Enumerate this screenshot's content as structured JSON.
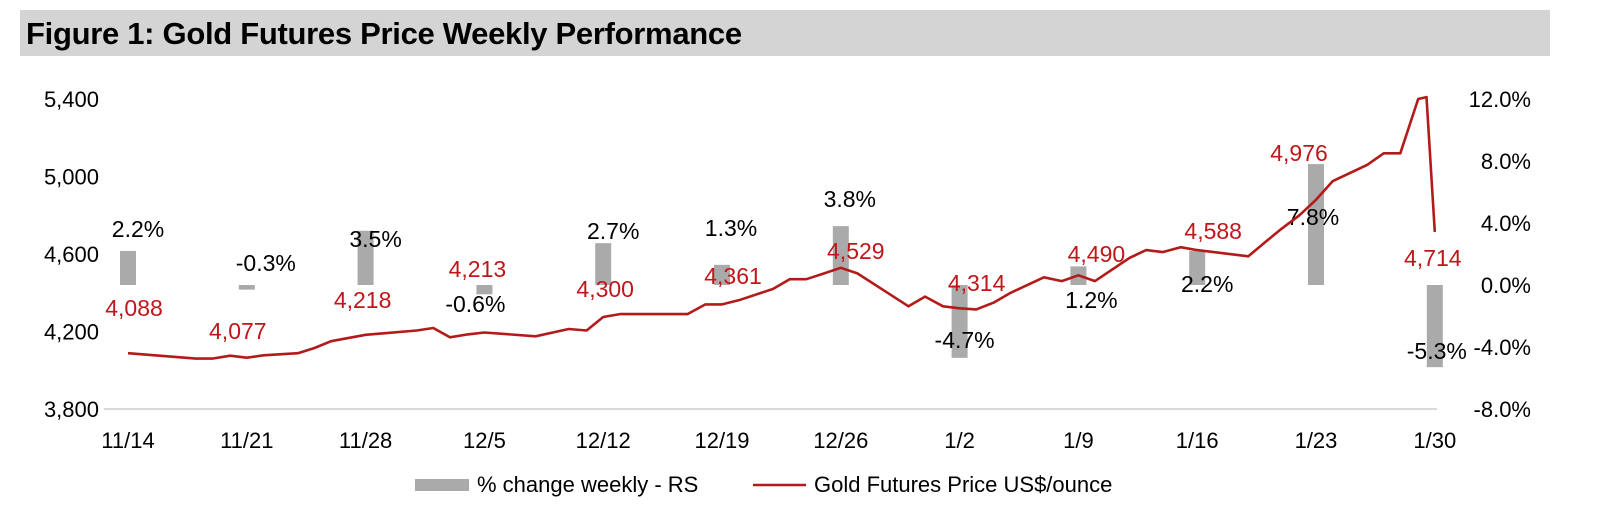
{
  "title": "Figure 1: Gold Futures Price Weekly Performance",
  "colors": {
    "bar": "#aaaaaa",
    "line": "#b31b1b",
    "price_label": "#c0161a",
    "text": "#000000",
    "axis": "#d9d9d9",
    "title_bg": "#d4d4d4"
  },
  "chart_data": {
    "type": "bar+line",
    "title": "Figure 1: Gold Futures Price Weekly Performance",
    "categories": [
      "11/14",
      "11/21",
      "11/28",
      "12/5",
      "12/12",
      "12/19",
      "12/26",
      "1/2",
      "1/9",
      "1/16",
      "1/23",
      "1/30"
    ],
    "y_left": {
      "min": 3800,
      "max": 5400,
      "ticks": [
        "5,400",
        "5,000",
        "4,600",
        "4,200",
        "3,800"
      ]
    },
    "y_right": {
      "min": -8.0,
      "max": 12.0,
      "ticks": [
        "12.0%",
        "8.0%",
        "4.0%",
        "0.0%",
        "-4.0%",
        "-8.0%"
      ]
    },
    "series": [
      {
        "name": "% change weekly - RS",
        "kind": "bar",
        "axis": "right",
        "values": [
          2.2,
          -0.3,
          3.5,
          -0.6,
          2.7,
          1.3,
          3.8,
          -4.7,
          1.2,
          2.2,
          7.8,
          -5.3
        ],
        "labels": [
          "2.2%",
          "-0.3%",
          "3.5%",
          "-0.6%",
          "2.7%",
          "1.3%",
          "3.8%",
          "-4.7%",
          "1.2%",
          "2.2%",
          "7.8%",
          "-5.3%"
        ]
      },
      {
        "name": "Gold Futures Price US$/ounce",
        "kind": "line",
        "axis": "left",
        "x": [
          0.0,
          0.57,
          0.71,
          0.86,
          1.0,
          1.14,
          1.43,
          1.57,
          1.71,
          2.0,
          2.14,
          2.43,
          2.57,
          2.71,
          2.86,
          3.0,
          3.43,
          3.71,
          3.86,
          4.0,
          4.14,
          4.43,
          4.57,
          4.71,
          4.86,
          5.0,
          5.14,
          5.43,
          5.57,
          5.71,
          5.86,
          6.0,
          6.14,
          6.57,
          6.71,
          6.86,
          7.0,
          7.14,
          7.29,
          7.43,
          7.71,
          7.86,
          8.0,
          8.14,
          8.43,
          8.57,
          8.71,
          8.86,
          9.0,
          9.43,
          9.57,
          9.71,
          9.86,
          10.0,
          10.14,
          10.43,
          10.57,
          10.71,
          10.86,
          10.93,
          11.0
        ],
        "values": [
          4088,
          4060,
          4060,
          4075,
          4065,
          4077,
          4088,
          4115,
          4150,
          4183,
          4190,
          4205,
          4218,
          4170,
          4185,
          4195,
          4175,
          4213,
          4205,
          4275,
          4290,
          4290,
          4290,
          4290,
          4340,
          4340,
          4361,
          4420,
          4470,
          4470,
          4500,
          4529,
          4500,
          4330,
          4380,
          4330,
          4320,
          4314,
          4350,
          4400,
          4480,
          4460,
          4490,
          4460,
          4580,
          4620,
          4610,
          4635,
          4620,
          4588,
          4660,
          4730,
          4800,
          4880,
          4976,
          5060,
          5120,
          5120,
          5400,
          5410,
          4714
        ]
      }
    ],
    "price_annotations": [
      "4,088",
      "4,077",
      "4,218",
      "4,213",
      "4,300",
      "4,361",
      "4,529",
      "4,314",
      "4,490",
      "4,588",
      "4,976",
      "4,714"
    ],
    "legend": {
      "position": "bottom-center"
    }
  }
}
